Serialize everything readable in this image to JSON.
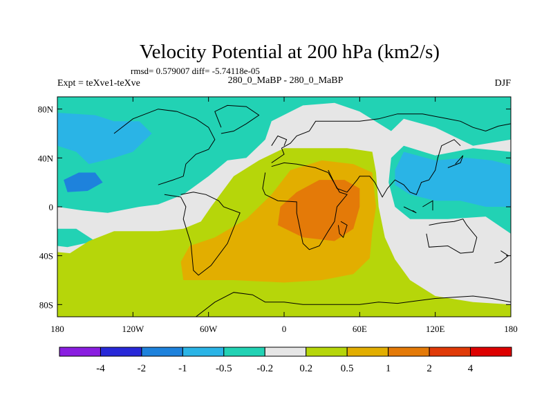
{
  "chart_data": {
    "type": "heatmap",
    "title": "Velocity Potential at 200 hPa (km2/s)",
    "stats_text": "rmsd= 0.579007 diff= -5.74118e-05",
    "left_label": "Expt = teXve1-teXve",
    "center_label": "280_0_MaBP - 280_0_MaBP",
    "right_label": "DJF",
    "x_ticks": [
      {
        "value": -180,
        "label": "180"
      },
      {
        "value": -120,
        "label": "120W"
      },
      {
        "value": -60,
        "label": "60W"
      },
      {
        "value": 0,
        "label": "0"
      },
      {
        "value": 60,
        "label": "60E"
      },
      {
        "value": 120,
        "label": "120E"
      },
      {
        "value": 180,
        "label": "180"
      }
    ],
    "y_ticks": [
      {
        "value": 80,
        "label": "80N"
      },
      {
        "value": 40,
        "label": "40N"
      },
      {
        "value": 0,
        "label": "0"
      },
      {
        "value": -40,
        "label": "40S"
      },
      {
        "value": -80,
        "label": "80S"
      }
    ],
    "xlim": [
      -180,
      180
    ],
    "ylim": [
      -90,
      90
    ],
    "colorbar": {
      "levels": [
        "-4",
        "-2",
        "-1",
        "-0.5",
        "-0.2",
        "0.2",
        "0.5",
        "1",
        "2",
        "4"
      ],
      "colors": [
        "#8a1ee0",
        "#2828d8",
        "#1e82dc",
        "#2ab4e6",
        "#22d2b4",
        "#e6e6e6",
        "#b6d60a",
        "#e2ae00",
        "#e47a08",
        "#e03a08",
        "#dd0000"
      ]
    },
    "regions": [
      {
        "name": "nh-cyan-band",
        "value": -0.35,
        "points": [
          [
            -180,
            90
          ],
          [
            180,
            90
          ],
          [
            180,
            55
          ],
          [
            150,
            50
          ],
          [
            120,
            65
          ],
          [
            95,
            72
          ],
          [
            85,
            62
          ],
          [
            60,
            78
          ],
          [
            40,
            85
          ],
          [
            15,
            83
          ],
          [
            -10,
            70
          ],
          [
            -15,
            55
          ],
          [
            -30,
            40
          ],
          [
            -45,
            38
          ],
          [
            -60,
            25
          ],
          [
            -80,
            10
          ],
          [
            -100,
            2
          ],
          [
            -115,
            0
          ],
          [
            -140,
            -5
          ],
          [
            -160,
            -3
          ],
          [
            -180,
            0
          ]
        ]
      },
      {
        "name": "pacific-blue-patch",
        "value": -0.7,
        "points": [
          [
            -180,
            77
          ],
          [
            -150,
            75
          ],
          [
            -135,
            70
          ],
          [
            -115,
            70
          ],
          [
            -105,
            60
          ],
          [
            -120,
            45
          ],
          [
            -135,
            40
          ],
          [
            -155,
            35
          ],
          [
            -165,
            45
          ],
          [
            -180,
            50
          ]
        ]
      },
      {
        "name": "pacific-core",
        "value": -1.5,
        "points": [
          [
            -175,
            22
          ],
          [
            -163,
            28
          ],
          [
            -150,
            28
          ],
          [
            -144,
            20
          ],
          [
            -156,
            13
          ],
          [
            -172,
            12
          ]
        ]
      },
      {
        "name": "se-pacific-cyan",
        "value": -0.35,
        "points": [
          [
            -180,
            -18
          ],
          [
            -165,
            -18
          ],
          [
            -150,
            -28
          ],
          [
            -172,
            -33
          ],
          [
            -180,
            -32
          ]
        ]
      },
      {
        "name": "asia-cyan-patch",
        "value": -0.35,
        "points": [
          [
            85,
            40
          ],
          [
            95,
            50
          ],
          [
            120,
            42
          ],
          [
            150,
            48
          ],
          [
            180,
            45
          ],
          [
            180,
            -22
          ],
          [
            160,
            -8
          ],
          [
            130,
            -10
          ],
          [
            100,
            -10
          ],
          [
            88,
            0
          ],
          [
            83,
            20
          ]
        ]
      },
      {
        "name": "asia-blue-patch",
        "value": -0.7,
        "points": [
          [
            88,
            30
          ],
          [
            95,
            45
          ],
          [
            120,
            38
          ],
          [
            145,
            40
          ],
          [
            165,
            38
          ],
          [
            180,
            34
          ],
          [
            180,
            0
          ],
          [
            160,
            0
          ],
          [
            140,
            5
          ],
          [
            120,
            5
          ],
          [
            100,
            10
          ],
          [
            88,
            18
          ]
        ]
      },
      {
        "name": "yellowgreen-area",
        "value": 0.35,
        "points": [
          [
            -180,
            -90
          ],
          [
            180,
            -90
          ],
          [
            180,
            -80
          ],
          [
            150,
            -78
          ],
          [
            120,
            -73
          ],
          [
            100,
            -60
          ],
          [
            88,
            -43
          ],
          [
            80,
            -25
          ],
          [
            75,
            0
          ],
          [
            73,
            28
          ],
          [
            70,
            45
          ],
          [
            50,
            48
          ],
          [
            20,
            48
          ],
          [
            0,
            48
          ],
          [
            -20,
            38
          ],
          [
            -40,
            25
          ],
          [
            -58,
            0
          ],
          [
            -66,
            -12
          ],
          [
            -80,
            -18
          ],
          [
            -100,
            -20
          ],
          [
            -135,
            -20
          ],
          [
            -155,
            -28
          ],
          [
            -170,
            -38
          ],
          [
            -180,
            -37
          ]
        ]
      },
      {
        "name": "orange-area",
        "value": 0.75,
        "points": [
          [
            -80,
            -60
          ],
          [
            -40,
            -60
          ],
          [
            0,
            -62
          ],
          [
            30,
            -60
          ],
          [
            55,
            -55
          ],
          [
            68,
            -42
          ],
          [
            70,
            -20
          ],
          [
            73,
            0
          ],
          [
            70,
            28
          ],
          [
            55,
            35
          ],
          [
            30,
            38
          ],
          [
            5,
            30
          ],
          [
            -10,
            10
          ],
          [
            -30,
            -10
          ],
          [
            -55,
            -25
          ],
          [
            -75,
            -32
          ],
          [
            -82,
            -45
          ]
        ]
      },
      {
        "name": "dark-orange-core",
        "value": 1.5,
        "points": [
          [
            -5,
            -15
          ],
          [
            15,
            -25
          ],
          [
            40,
            -28
          ],
          [
            55,
            -18
          ],
          [
            60,
            0
          ],
          [
            60,
            15
          ],
          [
            48,
            22
          ],
          [
            28,
            22
          ],
          [
            10,
            12
          ],
          [
            -3,
            0
          ]
        ]
      }
    ],
    "coastlines": [
      [
        [
          -70,
          -90
        ],
        [
          -55,
          -78
        ],
        [
          -40,
          -70
        ],
        [
          -25,
          -72
        ],
        [
          -15,
          -78
        ],
        [
          0,
          -78
        ],
        [
          15,
          -80
        ],
        [
          30,
          -80
        ],
        [
          45,
          -80
        ],
        [
          60,
          -80
        ],
        [
          75,
          -78
        ],
        [
          90,
          -79
        ],
        [
          105,
          -77
        ],
        [
          120,
          -75
        ],
        [
          135,
          -74
        ],
        [
          150,
          -73
        ],
        [
          165,
          -75
        ],
        [
          180,
          -78
        ]
      ],
      [
        [
          -95,
          10
        ],
        [
          -82,
          8
        ],
        [
          -78,
          0
        ],
        [
          -80,
          -10
        ],
        [
          -74,
          -30
        ],
        [
          -72,
          -52
        ],
        [
          -68,
          -56
        ],
        [
          -58,
          -48
        ],
        [
          -45,
          -30
        ],
        [
          -38,
          -12
        ],
        [
          -35,
          -5
        ],
        [
          -48,
          0
        ],
        [
          -52,
          5
        ],
        [
          -62,
          10
        ],
        [
          -72,
          12
        ],
        [
          -82,
          10
        ]
      ],
      [
        [
          -100,
          18
        ],
        [
          -88,
          22
        ],
        [
          -80,
          25
        ],
        [
          -78,
          35
        ],
        [
          -70,
          43
        ],
        [
          -60,
          47
        ],
        [
          -55,
          55
        ],
        [
          -60,
          65
        ],
        [
          -70,
          72
        ],
        [
          -85,
          78
        ],
        [
          -100,
          80
        ],
        [
          -120,
          72
        ],
        [
          -135,
          60
        ]
      ],
      [
        [
          -50,
          60
        ],
        [
          -40,
          62
        ],
        [
          -30,
          68
        ],
        [
          -20,
          75
        ],
        [
          -30,
          82
        ],
        [
          -45,
          83
        ],
        [
          -55,
          78
        ],
        [
          -50,
          65
        ]
      ],
      [
        [
          -15,
          28
        ],
        [
          -17,
          15
        ],
        [
          -15,
          10
        ],
        [
          -5,
          5
        ],
        [
          10,
          4
        ],
        [
          10,
          -5
        ],
        [
          12,
          -15
        ],
        [
          15,
          -30
        ],
        [
          20,
          -35
        ],
        [
          28,
          -32
        ],
        [
          35,
          -20
        ],
        [
          40,
          -12
        ],
        [
          42,
          0
        ],
        [
          50,
          10
        ],
        [
          44,
          12
        ],
        [
          35,
          28
        ],
        [
          25,
          32
        ],
        [
          10,
          35
        ],
        [
          0,
          36
        ],
        [
          -10,
          33
        ]
      ],
      [
        [
          45,
          -12
        ],
        [
          50,
          -15
        ],
        [
          47,
          -25
        ],
        [
          44,
          -22
        ],
        [
          43,
          -15
        ]
      ],
      [
        [
          -10,
          36
        ],
        [
          0,
          43
        ],
        [
          -2,
          48
        ],
        [
          5,
          52
        ],
        [
          10,
          58
        ],
        [
          20,
          62
        ],
        [
          25,
          70
        ],
        [
          40,
          70
        ],
        [
          60,
          70
        ],
        [
          75,
          72
        ],
        [
          90,
          76
        ],
        [
          110,
          76
        ],
        [
          130,
          72
        ],
        [
          140,
          70
        ],
        [
          150,
          65
        ],
        [
          160,
          62
        ],
        [
          170,
          66
        ],
        [
          180,
          68
        ]
      ],
      [
        [
          35,
          30
        ],
        [
          42,
          15
        ],
        [
          50,
          12
        ],
        [
          58,
          22
        ],
        [
          60,
          25
        ],
        [
          68,
          25
        ],
        [
          72,
          20
        ],
        [
          78,
          8
        ],
        [
          82,
          15
        ],
        [
          88,
          22
        ],
        [
          95,
          18
        ],
        [
          100,
          12
        ],
        [
          105,
          10
        ],
        [
          109,
          20
        ],
        [
          115,
          22
        ],
        [
          120,
          30
        ],
        [
          122,
          40
        ],
        [
          125,
          50
        ],
        [
          135,
          55
        ],
        [
          140,
          50
        ]
      ],
      [
        [
          -10,
          50
        ],
        [
          -5,
          58
        ],
        [
          2,
          55
        ],
        [
          0,
          50
        ]
      ],
      [
        [
          130,
          32
        ],
        [
          140,
          36
        ],
        [
          142,
          42
        ],
        [
          136,
          35
        ]
      ],
      [
        [
          95,
          0
        ],
        [
          105,
          -5
        ],
        [
          102,
          -3
        ]
      ],
      [
        [
          110,
          0
        ],
        [
          118,
          5
        ],
        [
          118,
          -3
        ]
      ],
      [
        [
          115,
          -15
        ],
        [
          125,
          -13
        ],
        [
          135,
          -12
        ],
        [
          142,
          -10
        ],
        [
          145,
          -15
        ],
        [
          153,
          -25
        ],
        [
          150,
          -37
        ],
        [
          140,
          -38
        ],
        [
          130,
          -32
        ],
        [
          115,
          -33
        ],
        [
          113,
          -22
        ]
      ],
      [
        [
          172,
          -36
        ],
        [
          178,
          -40
        ],
        [
          172,
          -45
        ],
        [
          167,
          -46
        ]
      ]
    ]
  }
}
